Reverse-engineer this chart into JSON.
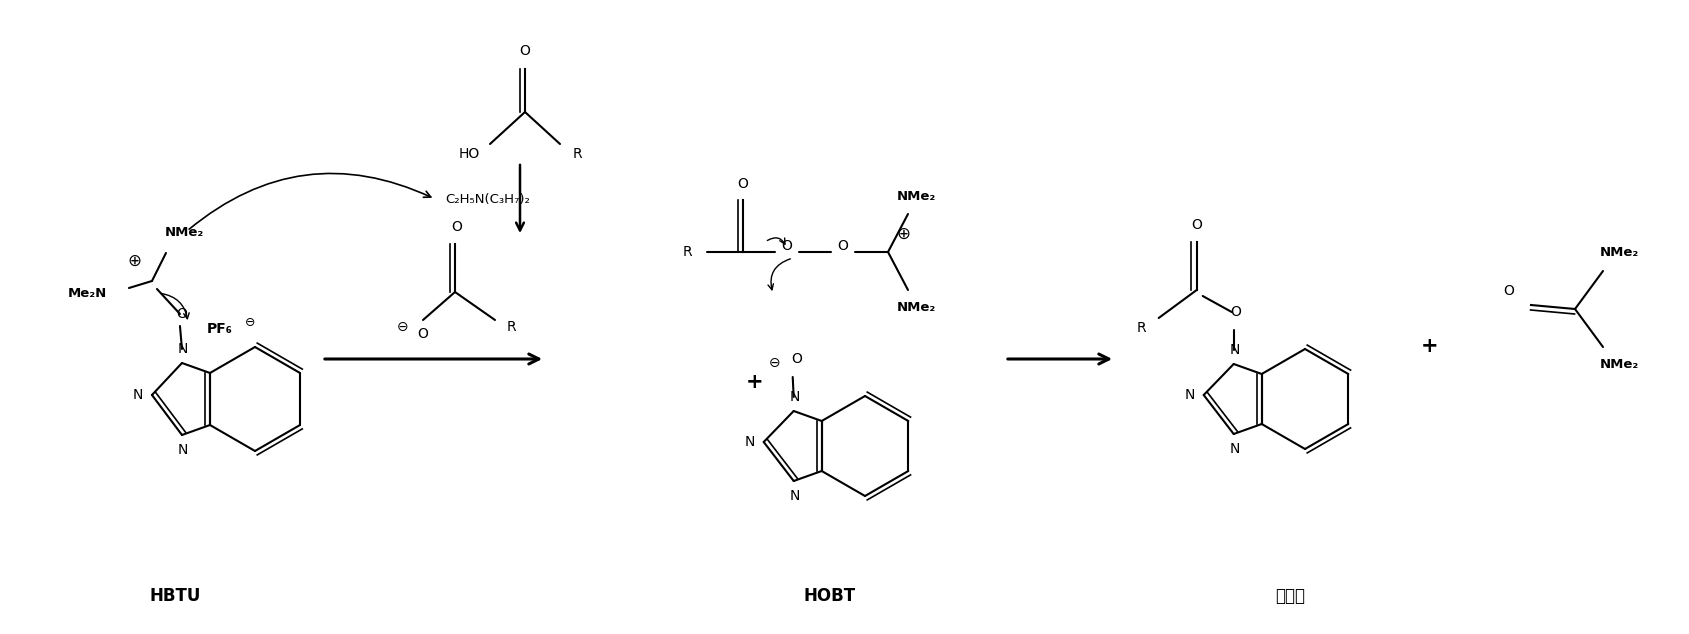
{
  "background_color": "#ffffff",
  "line_color": "#000000",
  "fig_width": 16.89,
  "fig_height": 6.34,
  "dpi": 100,
  "structures": {
    "HBTU_label": "HBTU",
    "HOBT_label": "HOBT",
    "activated_ester_label": "活化酯",
    "base_label": "C₂H₅N(C₃H₇)₂",
    "NMe2": "NMe₂",
    "Me2N": "Me₂N",
    "PF6": "PF₆"
  }
}
